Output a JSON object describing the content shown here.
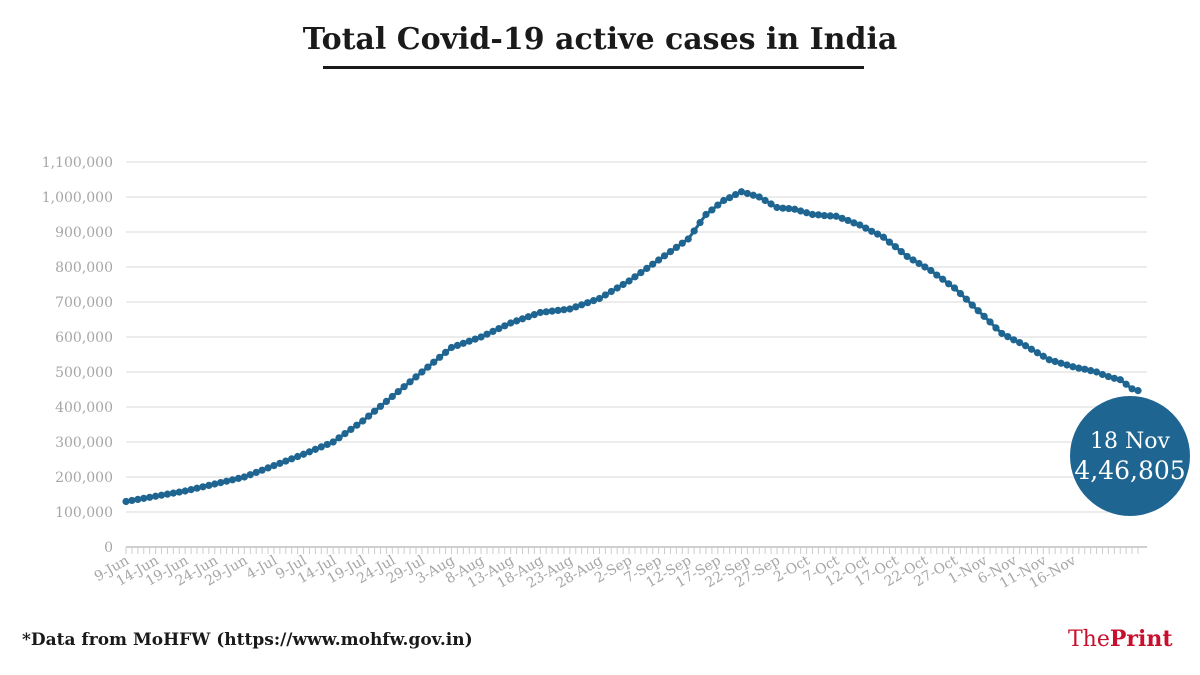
{
  "title": "Total Covid-19 active cases in India",
  "footnote": "*Data from MoHFW (https://www.mohfw.gov.in)",
  "brand": {
    "the": "The",
    "print": "Print"
  },
  "callout": {
    "date": "18 Nov",
    "value": "4,46,805"
  },
  "colors": {
    "line": "#1f6591",
    "grid": "#e6e6e6",
    "axis_text": "#a6a6a6",
    "callout": "#1f6591",
    "brand": "#c8102e"
  },
  "chart_data": {
    "type": "line",
    "title": "Total Covid-19 active cases in India",
    "xlabel": "",
    "ylabel": "",
    "ylim": [
      0,
      1100000
    ],
    "yticks": [
      0,
      100000,
      200000,
      300000,
      400000,
      500000,
      600000,
      700000,
      800000,
      900000,
      1000000,
      1100000
    ],
    "ytick_labels": [
      "0",
      "100,000",
      "200,000",
      "300,000",
      "400,000",
      "500,000",
      "600,000",
      "700,000",
      "800,000",
      "900,000",
      "1,000,000",
      "1,100,000"
    ],
    "xtick_labels": [
      "9-Jun",
      "14-Jun",
      "19-Jun",
      "24-Jun",
      "29-Jun",
      "4-Jul",
      "9-Jul",
      "14-Jul",
      "19-Jul",
      "24-Jul",
      "29-Jul",
      "3-Aug",
      "8-Aug",
      "13-Aug",
      "18-Aug",
      "23-Aug",
      "28-Aug",
      "2-Sep",
      "7-Sep",
      "12-Sep",
      "17-Sep",
      "22-Sep",
      "27-Sep",
      "2-Oct",
      "7-Oct",
      "12-Oct",
      "17-Oct",
      "22-Oct",
      "27-Oct",
      "1-Nov",
      "6-Nov",
      "11-Nov",
      "16-Nov"
    ],
    "x_start": "9-Jun",
    "x_end": "18-Nov",
    "grid": true,
    "series": [
      {
        "name": "Active cases",
        "anchors": [
          [
            0,
            130000
          ],
          [
            10,
            160000
          ],
          [
            20,
            200000
          ],
          [
            30,
            265000
          ],
          [
            35,
            300000
          ],
          [
            40,
            360000
          ],
          [
            45,
            430000
          ],
          [
            50,
            500000
          ],
          [
            55,
            570000
          ],
          [
            60,
            600000
          ],
          [
            65,
            640000
          ],
          [
            70,
            670000
          ],
          [
            75,
            680000
          ],
          [
            80,
            710000
          ],
          [
            85,
            760000
          ],
          [
            90,
            820000
          ],
          [
            95,
            880000
          ],
          [
            98,
            950000
          ],
          [
            101,
            990000
          ],
          [
            104,
            1015000
          ],
          [
            107,
            1000000
          ],
          [
            110,
            970000
          ],
          [
            113,
            965000
          ],
          [
            116,
            950000
          ],
          [
            120,
            945000
          ],
          [
            124,
            920000
          ],
          [
            128,
            885000
          ],
          [
            132,
            830000
          ],
          [
            136,
            790000
          ],
          [
            140,
            740000
          ],
          [
            144,
            675000
          ],
          [
            148,
            610000
          ],
          [
            152,
            575000
          ],
          [
            156,
            535000
          ],
          [
            160,
            515000
          ],
          [
            164,
            500000
          ],
          [
            168,
            480000
          ],
          [
            162,
            507000
          ],
          [
            166,
            490000
          ],
          [
            164,
            498000
          ],
          [
            162,
            506000
          ]
        ],
        "values": [
          130000,
          133000,
          136000,
          139000,
          142000,
          145000,
          148000,
          151000,
          154000,
          157000,
          160000,
          164000,
          168000,
          172000,
          176000,
          180000,
          184000,
          188000,
          192000,
          196000,
          200000,
          206500,
          213000,
          219500,
          226000,
          232500,
          239000,
          245500,
          252000,
          258500,
          265000,
          272000,
          279000,
          286000,
          293000,
          300000,
          312000,
          324000,
          336000,
          348000,
          360000,
          374000,
          388000,
          402000,
          416000,
          430000,
          444000,
          458000,
          472000,
          486000,
          500000,
          514000,
          528000,
          542000,
          556000,
          570000,
          576000,
          582000,
          588000,
          594000,
          600000,
          608000,
          616000,
          624000,
          632000,
          640000,
          646000,
          652000,
          658000,
          664000,
          670000,
          672000,
          674000,
          676000,
          678000,
          680000,
          686000,
          692000,
          698000,
          704000,
          710000,
          720000,
          730000,
          740000,
          750000,
          760000,
          772000,
          784000,
          796000,
          808000,
          820000,
          832000,
          844000,
          856000,
          868000,
          880000,
          903000,
          927000,
          950000,
          963000,
          977000,
          990000,
          998000,
          1007000,
          1015000,
          1010000,
          1005000,
          1000000,
          990000,
          980000,
          970000,
          968000,
          967000,
          965000,
          960000,
          955000,
          950000,
          949000,
          947000,
          946000,
          945000,
          939000,
          933000,
          926000,
          920000,
          911000,
          902000,
          894000,
          885000,
          871000,
          858000,
          844000,
          830000,
          820000,
          810000,
          800000,
          790000,
          777000,
          765000,
          752000,
          740000,
          724000,
          708000,
          691000,
          675000,
          659000,
          643000,
          626000,
          610000,
          601000,
          592000,
          584000,
          575000,
          565000,
          555000,
          545000,
          535000,
          530000,
          525000,
          520000,
          515000,
          511000,
          508000,
          504000,
          500000,
          493000,
          487000,
          482000,
          478000,
          465000,
          452000,
          446805
        ]
      }
    ]
  }
}
